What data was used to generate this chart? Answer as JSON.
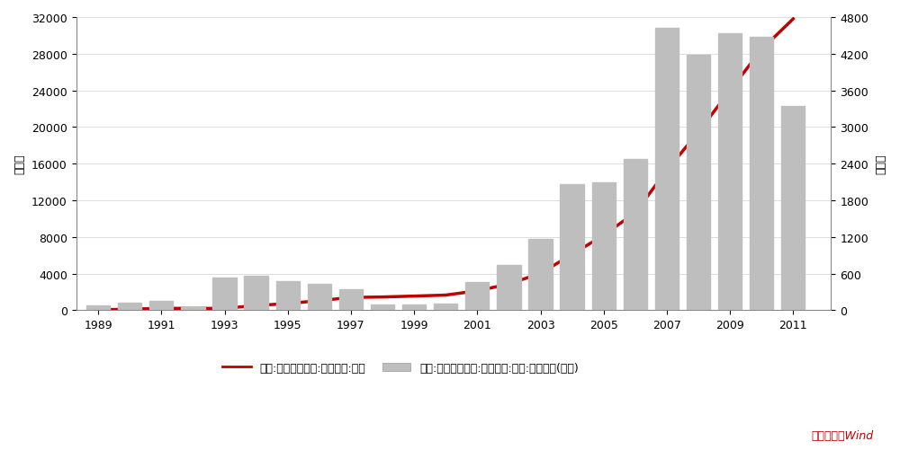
{
  "years": [
    1989,
    1990,
    1991,
    1992,
    1993,
    1994,
    1995,
    1996,
    1997,
    1998,
    1999,
    2000,
    2001,
    2002,
    2003,
    2004,
    2005,
    2006,
    2007,
    2008,
    2009,
    2010,
    2011
  ],
  "forex_total": [
    55,
    111,
    217,
    194,
    212,
    516,
    736,
    1050,
    1399,
    1450,
    1547,
    1656,
    2122,
    2864,
    4033,
    6099,
    8189,
    10663,
    15282,
    19460,
    23992,
    28473,
    31811
  ],
  "forex_increase": [
    80,
    130,
    160,
    50,
    530,
    560,
    470,
    430,
    350,
    100,
    100,
    110,
    465,
    740,
    1170,
    2067,
    2090,
    2474,
    4619,
    4177,
    4532,
    4481,
    3338
  ],
  "left_ylabel": "亿美元",
  "right_ylabel": "亿美元",
  "left_ylim": [
    0,
    32000
  ],
  "right_ylim": [
    0,
    4800
  ],
  "left_yticks": [
    0,
    4000,
    8000,
    12000,
    16000,
    20000,
    24000,
    28000,
    32000
  ],
  "right_yticks": [
    0,
    600,
    1200,
    1800,
    2400,
    3000,
    3600,
    4200,
    4800
  ],
  "xticks": [
    1989,
    1991,
    1993,
    1995,
    1997,
    1999,
    2001,
    2003,
    2005,
    2007,
    2009,
    2011
  ],
  "line_color": "#C00000",
  "bar_color": "#BEBEBE",
  "background_color": "#FFFFFF",
  "grid_color": "#D0D0D0",
  "legend_line_label": "中国:官方储备资产:外汇储备:年度",
  "legend_bar_label": "中国:官方储备资产:外汇储备:年度:环比增加(右轴)",
  "source_text": "数据来源：Wind",
  "source_color": "#C00000",
  "figsize": [
    10.0,
    5.02
  ],
  "dpi": 100
}
